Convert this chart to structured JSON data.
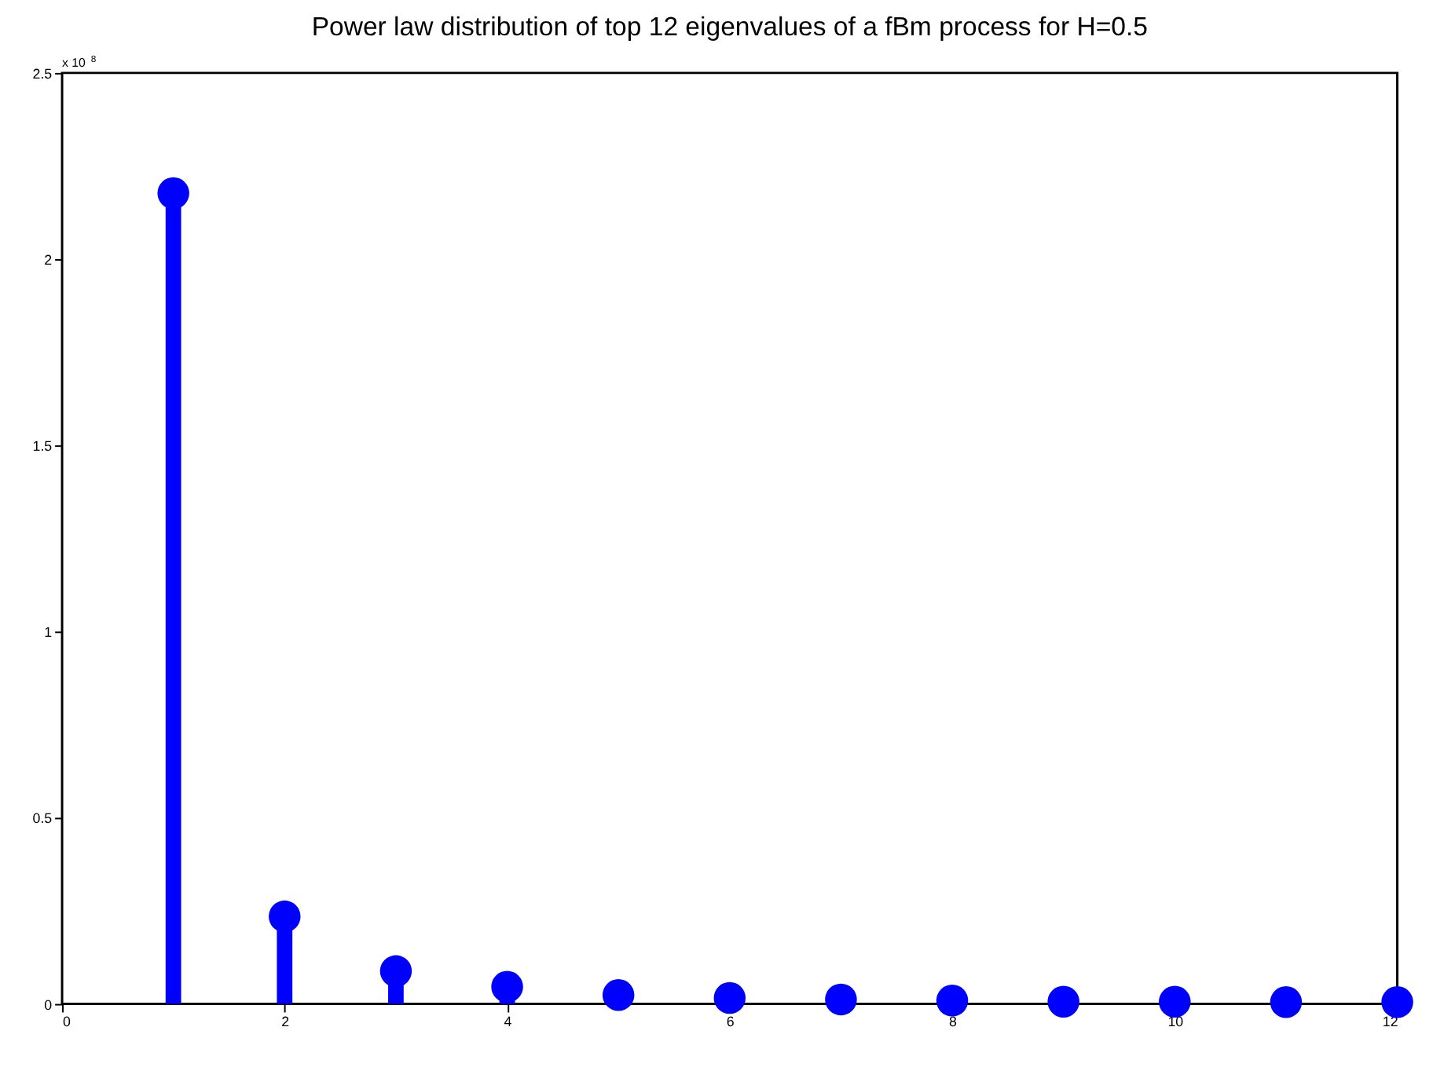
{
  "chart_data": {
    "type": "lollipop",
    "title": "Power law distribution of top 12 eigenvalues of a fBm process for H=0.5",
    "x": [
      1,
      2,
      3,
      4,
      5,
      6,
      7,
      8,
      9,
      10,
      11,
      12
    ],
    "series": [
      {
        "color": "#0000ff",
        "values": [
          2.177,
          0.235,
          0.088,
          0.046,
          0.024,
          0.016,
          0.012,
          0.009,
          0.006,
          0.006,
          0.005,
          0.005
        ]
      }
    ],
    "xlim": [
      0,
      12
    ],
    "xticks": [
      0,
      2,
      4,
      6,
      8,
      10,
      12
    ],
    "ylim": [
      0,
      2.5
    ],
    "yticks": [
      0,
      0.5,
      1,
      1.5,
      2,
      2.5
    ],
    "marker": "circle",
    "grid": false,
    "annotations": [
      "x 10$^{8}$"
    ]
  }
}
